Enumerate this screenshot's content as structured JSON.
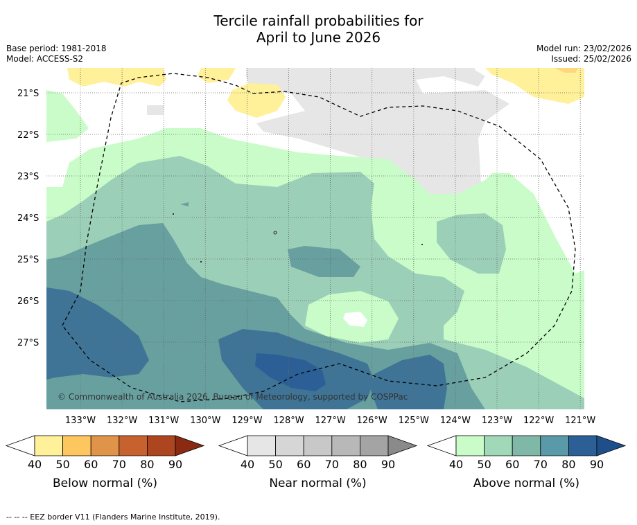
{
  "title": {
    "line1": "Tercile rainfall probabilities for",
    "line2": "April to June 2026"
  },
  "meta": {
    "base_period": "Base period: 1981-2018",
    "model": "Model: ACCESS-S2",
    "model_run": "Model run: 23/02/2026",
    "issued": "Issued: 25/02/2026"
  },
  "map": {
    "latitudes": [
      "21°S",
      "22°S",
      "23°S",
      "24°S",
      "25°S",
      "26°S",
      "27°S"
    ],
    "longitudes": [
      "133°W",
      "132°W",
      "131°W",
      "130°W",
      "129°W",
      "128°W",
      "127°W",
      "126°W",
      "125°W",
      "124°W",
      "123°W",
      "122°W",
      "121°W"
    ],
    "copyright": "© Commonwealth of Australia 2026, Bureau of Meteorology, supported by COSPPac"
  },
  "colorbars": [
    {
      "label": "Below normal (%)",
      "ticks": [
        "40",
        "50",
        "60",
        "70",
        "80",
        "90"
      ],
      "colors": [
        "#ffffff",
        "#fff09a",
        "#fdc65e",
        "#e0944a",
        "#c7622f",
        "#ad4520",
        "#8a2a12"
      ]
    },
    {
      "label": "Near normal (%)",
      "ticks": [
        "40",
        "50",
        "60",
        "70",
        "80",
        "90"
      ],
      "colors": [
        "#ffffff",
        "#e6e6e6",
        "#d6d6d6",
        "#c8c8c8",
        "#b8b8b8",
        "#a4a4a4",
        "#8a8a8a"
      ]
    },
    {
      "label": "Above normal (%)",
      "ticks": [
        "40",
        "50",
        "60",
        "70",
        "80",
        "90"
      ],
      "colors": [
        "#ffffff",
        "#c9fcc8",
        "#a0d8b8",
        "#80b8a8",
        "#5a9aa8",
        "#2c5f96",
        "#1f4f8a"
      ]
    }
  ],
  "colors": {
    "below_50": "#fff09a",
    "below_60": "#fdd77a",
    "near_50": "#e6e6e6",
    "above_50": "#c9fcc8",
    "above_60": "#9ccfb8",
    "above_70": "#68a0a0",
    "above_80": "#3f7496",
    "above_90": "#2c5f96"
  },
  "footnote": "--  --  -- EEZ border V11 (Flanders Marine Institute, 2019)."
}
